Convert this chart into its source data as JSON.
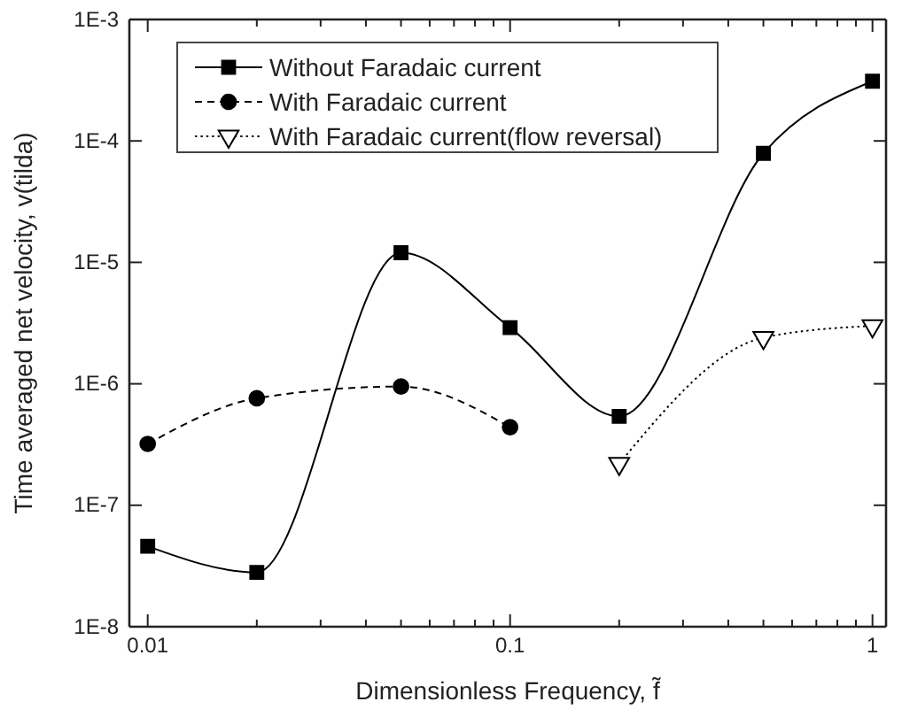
{
  "chart_data": {
    "type": "line",
    "xlabel": "Dimensionless Frequency, f̃",
    "ylabel": "Time averaged net velocity, v(tilda)",
    "log": "xy",
    "xlim": [
      0.0089,
      1.09
    ],
    "ylim": [
      1e-08,
      0.001
    ],
    "xticks": [
      0.01,
      {
        "value": 0.02,
        "label": null
      },
      {
        "value": 0.03,
        "label": null
      },
      {
        "value": 0.04,
        "label": null
      },
      {
        "value": 0.05,
        "label": null
      },
      {
        "value": 0.06,
        "label": null
      },
      {
        "value": 0.07,
        "label": null
      },
      {
        "value": 0.08,
        "label": null
      },
      {
        "value": 0.09,
        "label": null
      },
      0.1,
      {
        "value": 0.2,
        "label": null
      },
      {
        "value": 0.3,
        "label": null
      },
      {
        "value": 0.4,
        "label": null
      },
      {
        "value": 0.5,
        "label": null
      },
      {
        "value": 0.6,
        "label": null
      },
      {
        "value": 0.7,
        "label": null
      },
      {
        "value": 0.8,
        "label": null
      },
      {
        "value": 0.9,
        "label": null
      },
      1
    ],
    "yticks": [
      {
        "value": 1e-08,
        "label": "1E-8"
      },
      {
        "value": 1e-07,
        "label": "1E-7"
      },
      {
        "value": 1e-06,
        "label": "1E-6"
      },
      {
        "value": 1e-05,
        "label": "1E-5"
      },
      {
        "value": 0.0001,
        "label": "1E-4"
      },
      {
        "value": 0.001,
        "label": "1E-3"
      }
    ],
    "legend": "top left",
    "grid": false,
    "series": [
      {
        "name": "Without Faradaic current",
        "color": "#000000",
        "marker": "square",
        "line_style": "solid",
        "x": [
          0.01,
          0.02,
          0.05,
          0.1,
          0.2,
          0.5,
          1
        ],
        "values": [
          4.6e-08,
          2.8e-08,
          1.2e-05,
          2.9e-06,
          5.4e-07,
          7.9e-05,
          0.00031
        ]
      },
      {
        "name": "With Faradaic current",
        "color": "#000000",
        "marker": "circle",
        "line_style": "dashed",
        "x": [
          0.01,
          0.02,
          0.05,
          0.1
        ],
        "values": [
          3.2e-07,
          7.6e-07,
          9.5e-07,
          4.4e-07
        ]
      },
      {
        "name": "With Faradaic current(flow reversal)",
        "color": "#000000",
        "marker": "triangle",
        "line_style": "dotted",
        "x": [
          0.2,
          0.5,
          1
        ],
        "values": [
          2.2e-07,
          2.4e-06,
          3e-06
        ]
      }
    ]
  }
}
